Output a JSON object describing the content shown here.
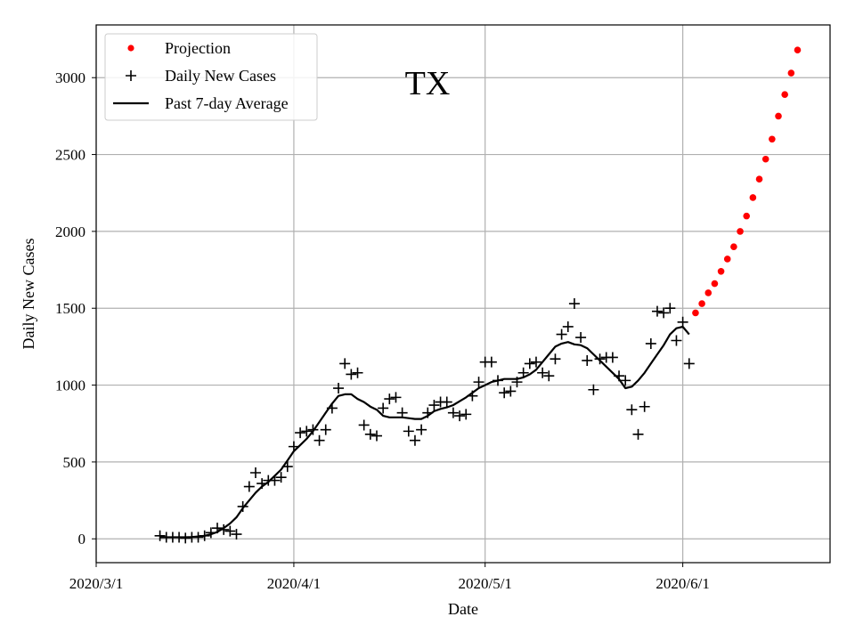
{
  "chart_data": {
    "type": "line",
    "title": "TX",
    "xlabel": "Date",
    "ylabel": "Daily New Cases",
    "x_unit": "days since 2020/3/1",
    "xlim": [
      0,
      115.1
    ],
    "ylim": [
      -155,
      3343
    ],
    "grid": true,
    "legend_placement": "top-left",
    "x_ticks": [
      {
        "value": 0,
        "label": "2020/3/1"
      },
      {
        "value": 31,
        "label": "2020/4/1"
      },
      {
        "value": 61,
        "label": "2020/5/1"
      },
      {
        "value": 92,
        "label": "2020/6/1"
      }
    ],
    "y_ticks": [
      0,
      500,
      1000,
      1500,
      2000,
      2500,
      3000
    ],
    "series": [
      {
        "name": "Projection",
        "style": "red-dots",
        "color": "#ff0000",
        "x_start": 94,
        "values": [
          1470,
          1530,
          1600,
          1660,
          1740,
          1820,
          1900,
          2000,
          2100,
          2220,
          2340,
          2470,
          2600,
          2750,
          2890,
          3030,
          3180
        ]
      },
      {
        "name": "Daily New Cases",
        "style": "plus",
        "color": "#000000",
        "x_start": 10,
        "values": [
          20,
          10,
          10,
          10,
          5,
          10,
          10,
          20,
          40,
          70,
          60,
          50,
          30,
          210,
          340,
          430,
          360,
          380,
          380,
          400,
          470,
          600,
          690,
          700,
          710,
          640,
          710,
          850,
          980,
          1140,
          1070,
          1080,
          740,
          680,
          670,
          850,
          910,
          920,
          820,
          700,
          640,
          710,
          820,
          870,
          890,
          890,
          820,
          800,
          810,
          930,
          1020,
          1150,
          1150,
          1030,
          950,
          960,
          1020,
          1080,
          1140,
          1150,
          1080,
          1060,
          1170,
          1330,
          1380,
          1530,
          1310,
          1160,
          970,
          1170,
          1180,
          1180,
          1060,
          1030,
          840,
          680,
          860,
          1270,
          1480,
          1470,
          1500,
          1290,
          1410,
          1140
        ]
      },
      {
        "name": "Past 7-day Average",
        "style": "line",
        "color": "#000000",
        "x_start": 10,
        "values": [
          10,
          10,
          10,
          10,
          10,
          12,
          15,
          20,
          30,
          45,
          70,
          100,
          140,
          200,
          250,
          300,
          340,
          370,
          410,
          450,
          510,
          570,
          610,
          650,
          700,
          760,
          820,
          880,
          930,
          940,
          940,
          910,
          890,
          860,
          840,
          800,
          790,
          790,
          790,
          785,
          780,
          780,
          800,
          830,
          845,
          855,
          870,
          895,
          920,
          950,
          980,
          1000,
          1020,
          1030,
          1040,
          1040,
          1040,
          1050,
          1070,
          1100,
          1150,
          1200,
          1250,
          1270,
          1280,
          1265,
          1260,
          1240,
          1200,
          1160,
          1120,
          1080,
          1040,
          980,
          990,
          1030,
          1080,
          1140,
          1200,
          1260,
          1330,
          1370,
          1380,
          1330
        ]
      }
    ]
  }
}
